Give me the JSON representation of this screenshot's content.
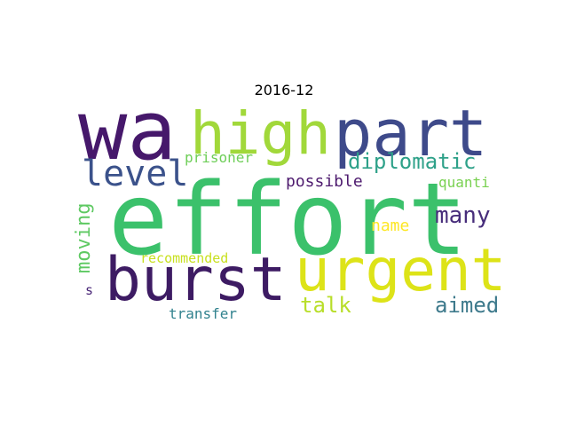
{
  "title": "2016-12",
  "words": [
    {
      "text": "wa",
      "color": "#46186b"
    },
    {
      "text": "high",
      "color": "#a1d83a"
    },
    {
      "text": "part",
      "color": "#3e4a8a"
    },
    {
      "text": "effort",
      "color": "#3bc16b"
    },
    {
      "text": "level",
      "color": "#3b528b"
    },
    {
      "text": "diplomatic",
      "color": "#2ea189"
    },
    {
      "text": "prisoner",
      "color": "#6ece58"
    },
    {
      "text": "possible",
      "color": "#4d1a6e"
    },
    {
      "text": "quanti",
      "color": "#79d151"
    },
    {
      "text": "burst",
      "color": "#3d1b63"
    },
    {
      "text": "urgent",
      "color": "#dde318"
    },
    {
      "text": "many",
      "color": "#472d7b"
    },
    {
      "text": "moving",
      "color": "#5ec962"
    },
    {
      "text": "name",
      "color": "#fde725"
    },
    {
      "text": "recommended",
      "color": "#c8e020"
    },
    {
      "text": "s",
      "color": "#482576"
    },
    {
      "text": "talk",
      "color": "#b8de29"
    },
    {
      "text": "aimed",
      "color": "#3e7a8c"
    },
    {
      "text": "transfer",
      "color": "#31828e"
    }
  ]
}
